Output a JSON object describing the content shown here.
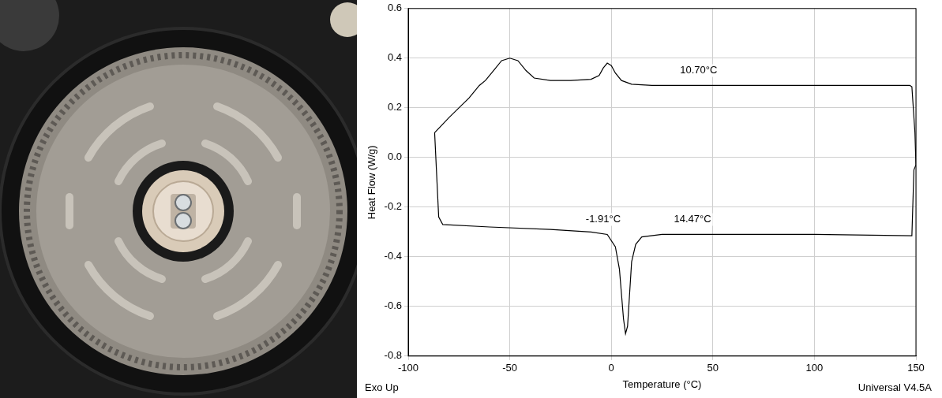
{
  "chart_data": {
    "type": "line",
    "x_label": "Temperature (°C)",
    "y_label": "Heat Flow (W/g)",
    "footer": {
      "left": "Exo Up",
      "right": "Universal V4.5A"
    },
    "xlim": [
      -100,
      150
    ],
    "xticks": [
      -100,
      -50,
      0,
      50,
      100,
      150
    ],
    "ylim": [
      -0.8,
      0.6
    ],
    "yticks": [
      -0.8,
      -0.6,
      -0.4,
      -0.2,
      {
        "value": 0,
        "label": "0.0"
      },
      0.2,
      0.4,
      0.6
    ],
    "grid": true,
    "series": [
      {
        "color": "#000000",
        "x": [
          -87,
          -85,
          -83,
          -60,
          -30,
          -10,
          -2,
          2,
          4,
          5,
          6,
          7,
          8,
          9,
          10,
          12,
          15,
          25,
          60,
          100,
          148,
          149,
          150,
          149.5,
          148,
          147,
          100,
          50,
          20,
          10,
          5,
          2,
          0,
          -2,
          -4,
          -6,
          -10,
          -20,
          -30,
          -38,
          -42,
          -46,
          -50,
          -54,
          -58,
          -62,
          -65,
          -70,
          -80,
          -87
        ],
        "values": [
          0.1,
          -0.24,
          -0.27,
          -0.28,
          -0.29,
          -0.3,
          -0.31,
          -0.36,
          -0.45,
          -0.55,
          -0.65,
          -0.71,
          -0.68,
          -0.55,
          -0.42,
          -0.35,
          -0.32,
          -0.31,
          -0.31,
          -0.31,
          -0.315,
          -0.05,
          -0.03,
          0.1,
          0.285,
          0.29,
          0.29,
          0.29,
          0.29,
          0.295,
          0.31,
          0.34,
          0.37,
          0.38,
          0.36,
          0.33,
          0.315,
          0.31,
          0.31,
          0.32,
          0.35,
          0.39,
          0.4,
          0.39,
          0.35,
          0.31,
          0.29,
          0.24,
          0.16,
          0.1
        ]
      }
    ],
    "annotations": [
      {
        "text": "10.70°C",
        "x": 43,
        "y": 0.35
      },
      {
        "text": "-1.91°C",
        "x": -4,
        "y": -0.25
      },
      {
        "text": "14.47°C",
        "x": 40,
        "y": -0.25
      }
    ]
  }
}
